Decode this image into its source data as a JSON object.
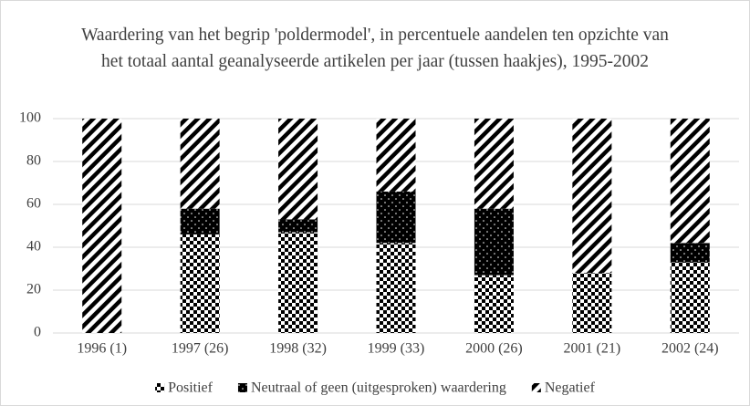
{
  "chart_data": {
    "type": "stacked_bar",
    "title": "Waardering van het begrip 'poldermodel', in percentuele aandelen ten opzichte van het totaal aantal geanalyseerde artikelen per jaar (tussen haakjes), 1995-2002",
    "categories": [
      "1996 (1)",
      "1997 (26)",
      "1998 (32)",
      "1999 (33)",
      "2000 (26)",
      "2001 (21)",
      "2002 (24)"
    ],
    "series": [
      {
        "name": "Positief",
        "color": "#000000",
        "pattern": "checker",
        "values": [
          0,
          46,
          47,
          42,
          27,
          28,
          33
        ]
      },
      {
        "name": "Neutraal of geen (uitgesproken) waardering",
        "color": "#000000",
        "pattern": "dots",
        "values": [
          0,
          12,
          6,
          24,
          31,
          0,
          9
        ]
      },
      {
        "name": "Negatief",
        "color": "#000000",
        "pattern": "stripes",
        "values": [
          100,
          42,
          47,
          34,
          42,
          72,
          58
        ]
      }
    ],
    "ylim": [
      0,
      100
    ],
    "yticks": [
      0,
      20,
      40,
      60,
      80,
      100
    ],
    "grid": true,
    "legend": "bottom"
  }
}
